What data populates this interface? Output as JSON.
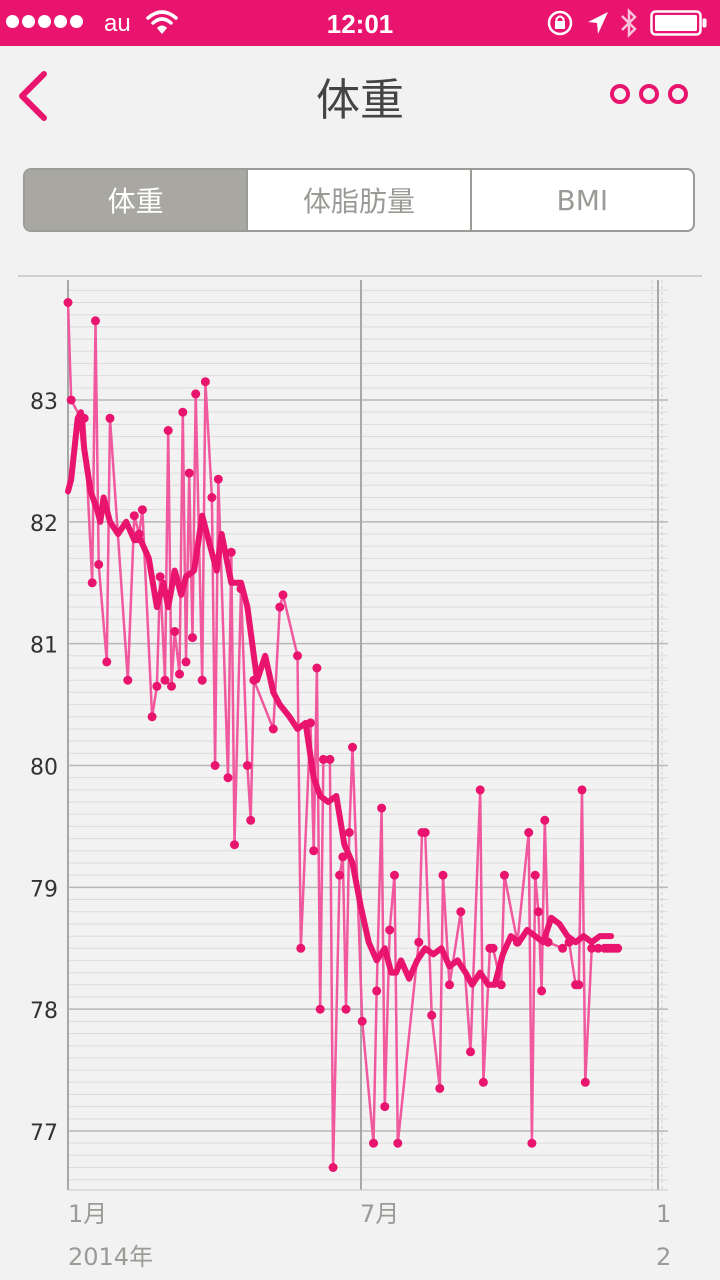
{
  "status_bar": {
    "carrier": "au",
    "time": "12:01",
    "icons": [
      "signal-dots-icon",
      "wifi-icon",
      "rotation-lock-icon",
      "location-arrow-icon",
      "bluetooth-icon",
      "battery-icon"
    ]
  },
  "nav": {
    "title": "体重",
    "back_icon": "chevron-left-icon",
    "more_icon": "more-dots-icon"
  },
  "tabs": [
    {
      "label": "体重",
      "active": true
    },
    {
      "label": "体脂肪量",
      "active": false
    },
    {
      "label": "BMI",
      "active": false
    }
  ],
  "colors": {
    "accent": "#e8146e",
    "raw_line": "#f0599e",
    "trend_line": "#e8146e",
    "segment_active": "#a8a7a2",
    "text": "#444444"
  },
  "chart_data": {
    "type": "line",
    "title": "",
    "xlabel": "",
    "ylabel": "",
    "ylim": [
      76.55,
      83.9
    ],
    "xlim": [
      "2014-01-01",
      "2015-01-01"
    ],
    "grid": true,
    "x_tick_labels": [
      "1月",
      "7月",
      "1"
    ],
    "year_labels": [
      "2014年",
      "2"
    ],
    "y_tick_labels": [
      "77",
      "78",
      "79",
      "80",
      "81",
      "82",
      "83"
    ],
    "series": [
      {
        "kind": "measurements",
        "x": [
          "2014-01-01",
          "2014-01-03",
          "2014-01-09",
          "2014-01-11",
          "2014-01-16",
          "2014-01-18",
          "2014-01-20",
          "2014-01-25",
          "2014-01-27",
          "2014-02-07",
          "2014-02-11",
          "2014-02-14",
          "2014-02-16",
          "2014-02-22",
          "2014-02-25",
          "2014-02-27",
          "2014-03-02",
          "2014-03-04",
          "2014-03-06",
          "2014-03-08",
          "2014-03-11",
          "2014-03-13",
          "2014-03-15",
          "2014-03-17",
          "2014-03-19",
          "2014-03-21",
          "2014-03-25",
          "2014-03-27",
          "2014-03-31",
          "2014-04-02",
          "2014-04-04",
          "2014-04-10",
          "2014-04-12",
          "2014-04-14",
          "2014-04-18",
          "2014-04-22",
          "2014-04-24",
          "2014-04-26",
          "2014-05-08",
          "2014-05-12",
          "2014-05-14",
          "2014-05-23",
          "2014-05-25",
          "2014-05-31",
          "2014-06-02",
          "2014-06-04",
          "2014-06-06",
          "2014-06-08",
          "2014-06-12",
          "2014-06-14",
          "2014-06-18",
          "2014-06-20",
          "2014-06-22",
          "2014-06-24",
          "2014-06-26",
          "2014-07-02",
          "2014-07-09",
          "2014-07-11",
          "2014-07-14",
          "2014-07-16",
          "2014-07-19",
          "2014-07-22",
          "2014-07-24",
          "2014-08-06",
          "2014-08-08",
          "2014-08-10",
          "2014-08-14",
          "2014-08-19",
          "2014-08-21",
          "2014-08-25",
          "2014-09-01",
          "2014-09-07",
          "2014-09-13",
          "2014-09-15",
          "2014-09-19",
          "2014-09-21",
          "2014-09-26",
          "2014-09-28",
          "2014-10-06",
          "2014-10-13",
          "2014-10-15",
          "2014-10-17",
          "2014-10-19",
          "2014-10-21",
          "2014-10-23",
          "2014-10-25",
          "2014-11-03",
          "2014-11-07",
          "2014-11-11",
          "2014-11-13",
          "2014-11-15",
          "2014-11-17",
          "2014-11-21",
          "2014-11-25",
          "2014-11-29",
          "2014-12-01",
          "2014-12-03",
          "2014-12-05",
          "2014-12-07"
        ],
        "y": [
          83.8,
          83.0,
          82.85,
          82.85,
          81.5,
          83.65,
          81.65,
          80.85,
          82.85,
          80.7,
          82.05,
          81.9,
          82.1,
          80.4,
          80.65,
          81.55,
          80.7,
          82.75,
          80.65,
          81.1,
          80.75,
          82.9,
          80.85,
          82.4,
          81.05,
          83.05,
          80.7,
          83.15,
          82.2,
          80.0,
          82.35,
          79.9,
          81.75,
          79.35,
          81.45,
          80.0,
          79.55,
          80.7,
          80.3,
          81.3,
          81.4,
          80.9,
          78.5,
          80.35,
          79.3,
          80.8,
          78.0,
          80.05,
          80.05,
          76.7,
          79.1,
          79.25,
          78.0,
          79.45,
          80.15,
          77.9,
          76.9,
          78.15,
          79.65,
          77.2,
          78.65,
          79.1,
          76.9,
          78.55,
          79.45,
          79.45,
          77.95,
          77.35,
          79.1,
          78.2,
          78.8,
          77.65,
          79.8,
          77.4,
          78.5,
          78.5,
          78.2,
          79.1,
          78.55,
          79.45,
          76.9,
          79.1,
          78.8,
          78.15,
          79.55,
          78.55,
          78.5,
          78.55,
          78.2,
          78.2,
          79.8,
          77.4,
          78.5,
          78.5,
          78.5,
          78.5,
          78.5,
          78.5,
          78.5
        ]
      },
      {
        "kind": "moving_average",
        "x": [
          "2014-01-01",
          "2014-01-03",
          "2014-01-07",
          "2014-01-09",
          "2014-01-11",
          "2014-01-15",
          "2014-01-19",
          "2014-01-21",
          "2014-01-23",
          "2014-01-27",
          "2014-02-01",
          "2014-02-06",
          "2014-02-11",
          "2014-02-15",
          "2014-02-20",
          "2014-02-25",
          "2014-03-01",
          "2014-03-04",
          "2014-03-08",
          "2014-03-12",
          "2014-03-15",
          "2014-03-20",
          "2014-03-25",
          "2014-03-30",
          "2014-04-03",
          "2014-04-06",
          "2014-04-12",
          "2014-04-18",
          "2014-04-22",
          "2014-04-28",
          "2014-05-03",
          "2014-05-08",
          "2014-05-12",
          "2014-05-18",
          "2014-05-23",
          "2014-05-28",
          "2014-06-02",
          "2014-06-06",
          "2014-06-11",
          "2014-06-16",
          "2014-06-21",
          "2014-06-26",
          "2014-07-01",
          "2014-07-06",
          "2014-07-11",
          "2014-07-16",
          "2014-07-20",
          "2014-07-23",
          "2014-07-26",
          "2014-07-31",
          "2014-08-05",
          "2014-08-10",
          "2014-08-15",
          "2014-08-20",
          "2014-08-25",
          "2014-08-30",
          "2014-09-04",
          "2014-09-08",
          "2014-09-13",
          "2014-09-18",
          "2014-09-22",
          "2014-09-27",
          "2014-10-02",
          "2014-10-07",
          "2014-10-12",
          "2014-10-17",
          "2014-10-22",
          "2014-10-27",
          "2014-11-01",
          "2014-11-06",
          "2014-11-11",
          "2014-11-16",
          "2014-11-21",
          "2014-11-26",
          "2014-12-01",
          "2014-12-03"
        ],
        "y": [
          82.25,
          82.35,
          82.85,
          82.9,
          82.6,
          82.25,
          82.1,
          82.0,
          82.2,
          82.0,
          81.9,
          82.0,
          81.85,
          81.85,
          81.7,
          81.3,
          81.5,
          81.3,
          81.6,
          81.4,
          81.55,
          81.6,
          82.05,
          81.8,
          81.6,
          81.9,
          81.5,
          81.5,
          81.3,
          80.7,
          80.9,
          80.6,
          80.5,
          80.4,
          80.3,
          80.35,
          79.9,
          79.75,
          79.7,
          79.75,
          79.35,
          79.2,
          78.85,
          78.55,
          78.4,
          78.5,
          78.3,
          78.3,
          78.4,
          78.25,
          78.4,
          78.5,
          78.45,
          78.5,
          78.35,
          78.4,
          78.3,
          78.2,
          78.3,
          78.2,
          78.2,
          78.45,
          78.6,
          78.55,
          78.65,
          78.6,
          78.55,
          78.75,
          78.7,
          78.6,
          78.55,
          78.6,
          78.55,
          78.6,
          78.6,
          78.6
        ]
      }
    ]
  }
}
